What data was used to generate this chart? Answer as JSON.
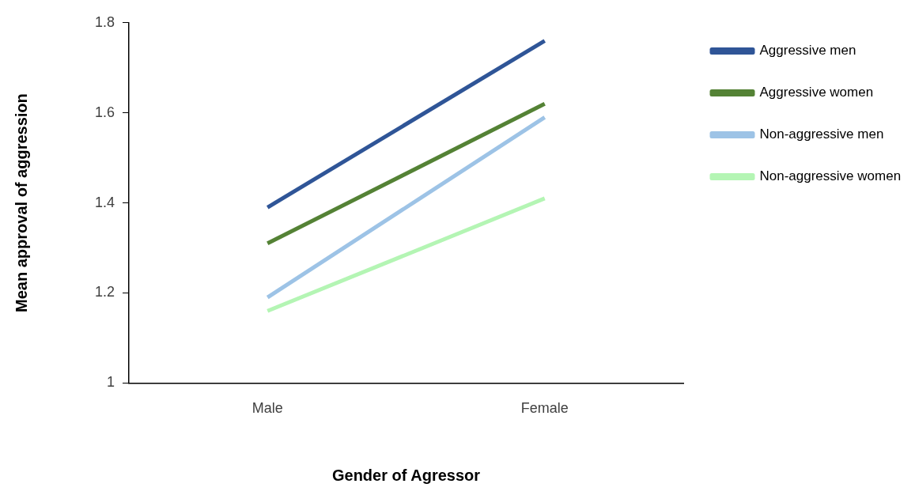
{
  "chart_data": {
    "type": "line",
    "xlabel": "Gender of Agressor",
    "ylabel": "Mean approval of aggression",
    "categories": [
      "Male",
      "Female"
    ],
    "series": [
      {
        "name": "Aggressive men",
        "color": "#2f5597",
        "values": [
          1.39,
          1.76
        ]
      },
      {
        "name": "Aggressive women",
        "color": "#548235",
        "values": [
          1.31,
          1.62
        ]
      },
      {
        "name": "Non-aggressive men",
        "color": "#9dc3e6",
        "values": [
          1.19,
          1.59
        ]
      },
      {
        "name": "Non-aggressive women",
        "color": "#b4f5b4",
        "values": [
          1.16,
          1.41
        ]
      }
    ],
    "ylim": [
      1,
      1.8
    ],
    "yticks": [
      1,
      1.2,
      1.4,
      1.6,
      1.8
    ],
    "grid": false,
    "legend": "right",
    "marker": "none",
    "line_style": "solid"
  }
}
